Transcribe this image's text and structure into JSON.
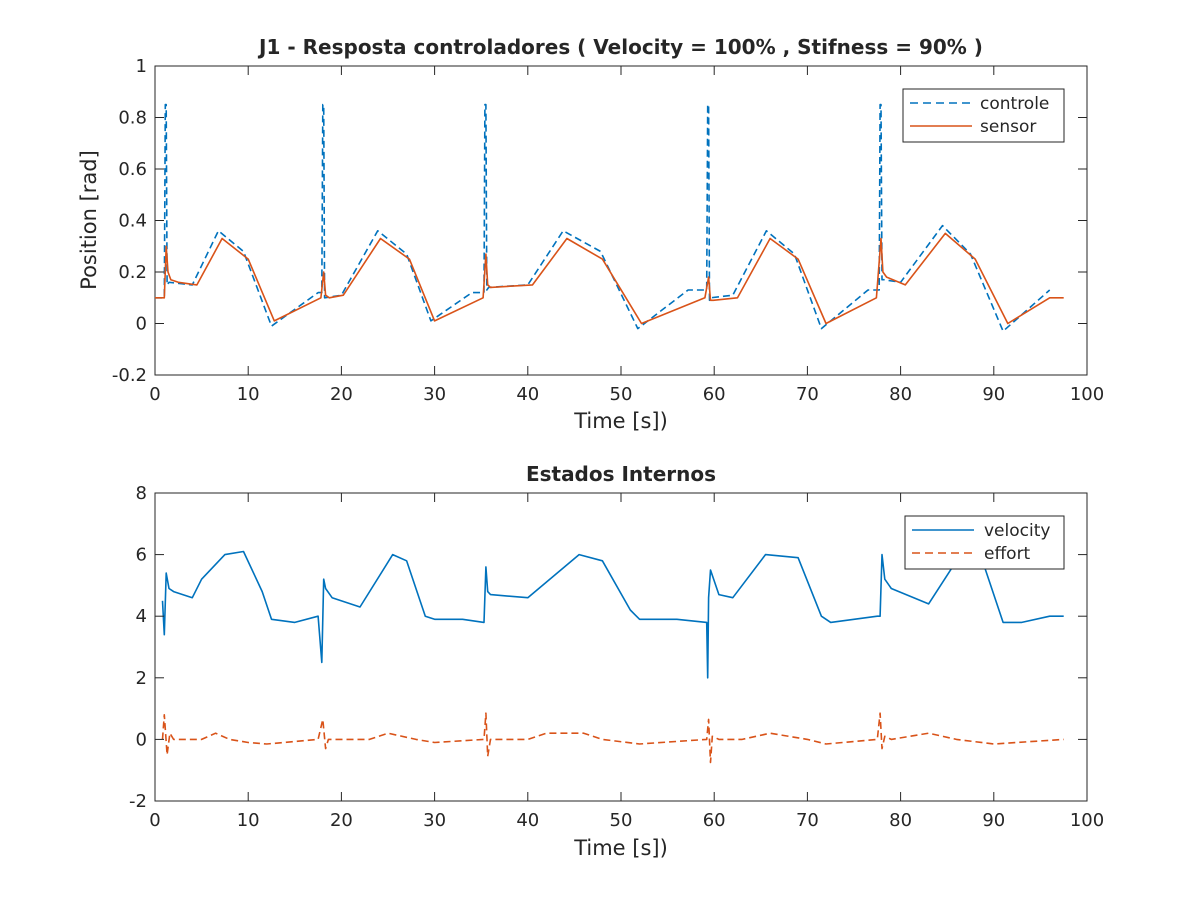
{
  "chart_data": [
    {
      "type": "line",
      "title": "J1 - Resposta controladores ( Velocity = 100% , Stifness = 90% )",
      "xlabel": "Time [s])",
      "ylabel": "Position [rad]",
      "xlim": [
        0,
        100
      ],
      "ylim": [
        -0.2,
        1
      ],
      "xticks": [
        "0",
        "10",
        "20",
        "30",
        "40",
        "50",
        "60",
        "70",
        "80",
        "90",
        "100"
      ],
      "yticks": [
        "-0.2",
        "0",
        "0.2",
        "0.4",
        "0.6",
        "0.8",
        "1"
      ],
      "legend_position": "top-right",
      "grid": false,
      "series": [
        {
          "name": "controle",
          "style": "dashed",
          "color": "#0072BD",
          "x": [
            0,
            1.0,
            1.1,
            1.2,
            1.3,
            1.5,
            4.0,
            6.8,
            9.5,
            12.5,
            17.5,
            17.9,
            18.0,
            18.1,
            18.2,
            20.0,
            23.9,
            27.0,
            29.6,
            34.0,
            35.3,
            35.4,
            35.5,
            35.6,
            35.8,
            40.0,
            43.8,
            47.8,
            51.8,
            57.2,
            59.2,
            59.3,
            59.4,
            59.5,
            59.6,
            62.0,
            65.6,
            68.6,
            71.5,
            76.5,
            77.7,
            77.8,
            77.9,
            78.0,
            78.2,
            80.0,
            84.5,
            87.5,
            91.0,
            96.0
          ],
          "y": [
            0.1,
            0.1,
            0.85,
            0.85,
            0.15,
            0.16,
            0.15,
            0.36,
            0.28,
            -0.01,
            0.12,
            0.12,
            0.85,
            0.85,
            0.1,
            0.11,
            0.36,
            0.27,
            0.01,
            0.12,
            0.12,
            0.85,
            0.85,
            0.13,
            0.14,
            0.15,
            0.36,
            0.28,
            -0.02,
            0.13,
            0.13,
            0.85,
            0.85,
            0.09,
            0.1,
            0.11,
            0.36,
            0.27,
            -0.02,
            0.13,
            0.13,
            0.85,
            0.85,
            0.17,
            0.17,
            0.16,
            0.38,
            0.27,
            -0.03,
            0.13
          ]
        },
        {
          "name": "sensor",
          "style": "solid",
          "color": "#D95319",
          "x": [
            0,
            1.0,
            1.2,
            1.4,
            1.7,
            2.5,
            4.5,
            7.2,
            10.0,
            12.8,
            17.8,
            18.1,
            18.3,
            18.7,
            20.2,
            24.2,
            27.3,
            30.0,
            35.2,
            35.5,
            35.7,
            36.0,
            40.5,
            44.2,
            48.0,
            52.2,
            59.0,
            59.4,
            59.6,
            59.9,
            62.5,
            66.0,
            69.0,
            72.0,
            77.4,
            77.9,
            78.1,
            78.5,
            80.5,
            84.8,
            88.0,
            91.5,
            96.0,
            97.5
          ],
          "y": [
            0.1,
            0.1,
            0.3,
            0.2,
            0.17,
            0.16,
            0.15,
            0.33,
            0.25,
            0.01,
            0.1,
            0.2,
            0.11,
            0.1,
            0.11,
            0.33,
            0.25,
            0.01,
            0.1,
            0.27,
            0.15,
            0.14,
            0.15,
            0.33,
            0.25,
            0.0,
            0.1,
            0.18,
            0.09,
            0.09,
            0.1,
            0.33,
            0.25,
            0.0,
            0.1,
            0.33,
            0.2,
            0.18,
            0.15,
            0.35,
            0.25,
            0.0,
            0.1,
            0.1
          ]
        }
      ]
    },
    {
      "type": "line",
      "title": "Estados Internos",
      "xlabel": "Time [s])",
      "ylabel": "",
      "xlim": [
        0,
        100
      ],
      "ylim": [
        -2,
        8
      ],
      "xticks": [
        "0",
        "10",
        "20",
        "30",
        "40",
        "50",
        "60",
        "70",
        "80",
        "90",
        "100"
      ],
      "yticks": [
        "-2",
        "0",
        "2",
        "4",
        "6",
        "8"
      ],
      "legend_position": "top-right",
      "grid": false,
      "series": [
        {
          "name": "velocity",
          "style": "solid",
          "color": "#0072BD",
          "x": [
            0.8,
            1.0,
            1.2,
            1.5,
            2.0,
            4.0,
            5.0,
            7.5,
            9.5,
            11.5,
            12.5,
            15.0,
            17.5,
            17.9,
            18.1,
            18.3,
            19.0,
            22.0,
            25.5,
            27.0,
            29.0,
            30.0,
            33.0,
            35.3,
            35.5,
            35.7,
            36.0,
            40.0,
            45.5,
            48.0,
            51.0,
            52.0,
            56.0,
            59.2,
            59.3,
            59.4,
            59.6,
            60.5,
            62.0,
            65.5,
            69.0,
            71.5,
            72.5,
            77.5,
            77.8,
            78.0,
            78.3,
            79.0,
            83.0,
            86.0,
            89.0,
            91.0,
            93.0,
            96.0,
            97.5
          ],
          "y": [
            4.5,
            3.4,
            5.4,
            4.9,
            4.8,
            4.6,
            5.2,
            6.0,
            6.1,
            4.8,
            3.9,
            3.8,
            4.0,
            2.5,
            5.2,
            4.9,
            4.6,
            4.3,
            6.0,
            5.8,
            4.0,
            3.9,
            3.9,
            3.8,
            5.6,
            4.8,
            4.7,
            4.6,
            6.0,
            5.8,
            4.2,
            3.9,
            3.9,
            3.8,
            2.0,
            4.6,
            5.5,
            4.7,
            4.6,
            6.0,
            5.9,
            4.0,
            3.8,
            4.0,
            4.0,
            6.0,
            5.2,
            4.9,
            4.4,
            5.8,
            5.6,
            3.8,
            3.8,
            4.0,
            4.0
          ]
        },
        {
          "name": "effort",
          "style": "dashed",
          "color": "#D95319",
          "x": [
            0.8,
            1.0,
            1.3,
            1.6,
            2.0,
            5.0,
            6.5,
            8.0,
            10.0,
            12.0,
            17.5,
            18.0,
            18.3,
            18.6,
            19.0,
            23.0,
            25.0,
            28.0,
            30.0,
            35.3,
            35.5,
            35.7,
            36.0,
            40.0,
            42.0,
            46.0,
            48.0,
            52.0,
            59.2,
            59.4,
            59.6,
            59.8,
            60.5,
            63.0,
            66.0,
            70.0,
            72.0,
            77.5,
            77.8,
            78.0,
            78.3,
            79.0,
            83.0,
            86.0,
            90.0,
            97.5
          ],
          "y": [
            0.0,
            0.8,
            -0.5,
            0.2,
            0.0,
            0.0,
            0.2,
            0.0,
            -0.1,
            -0.15,
            0.0,
            0.65,
            -0.3,
            0.0,
            0.0,
            0.0,
            0.2,
            0.0,
            -0.1,
            0.0,
            0.85,
            -0.55,
            0.0,
            0.0,
            0.2,
            0.2,
            0.0,
            -0.15,
            0.0,
            0.65,
            -0.75,
            0.1,
            0.0,
            0.0,
            0.2,
            0.0,
            -0.15,
            0.0,
            0.85,
            -0.3,
            0.1,
            0.0,
            0.2,
            0.0,
            -0.15,
            0.0
          ]
        }
      ]
    }
  ]
}
